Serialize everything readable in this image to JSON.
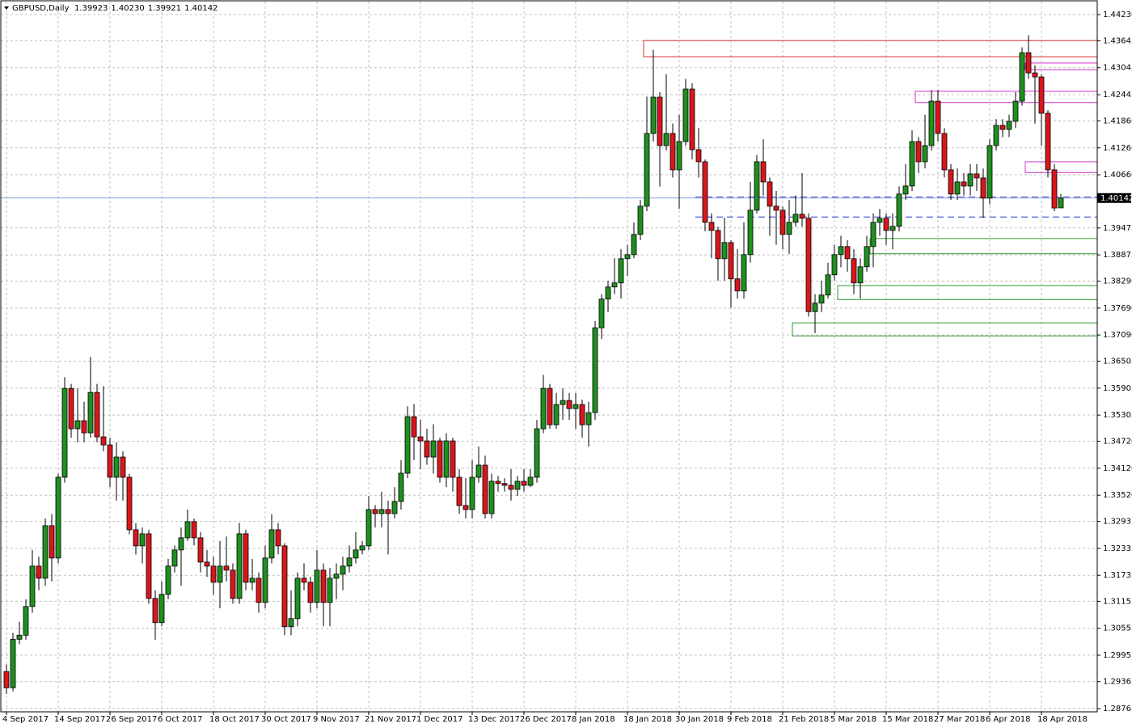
{
  "chart_data": {
    "type": "candlestick",
    "header": {
      "symbol": "GBPUSD,Daily",
      "ohlc": [
        "1.39923",
        "1.40230",
        "1.39921",
        "1.40142"
      ]
    },
    "categories": [
      "4 Sep 2017",
      null,
      null,
      null,
      null,
      null,
      null,
      null,
      "14 Sep 2017",
      null,
      null,
      null,
      null,
      null,
      null,
      null,
      "26 Sep 2017",
      null,
      null,
      null,
      null,
      null,
      null,
      null,
      "6 Oct 2017",
      null,
      null,
      null,
      null,
      null,
      null,
      null,
      "18 Oct 2017",
      null,
      null,
      null,
      null,
      null,
      null,
      null,
      "30 Oct 2017",
      null,
      null,
      null,
      null,
      null,
      null,
      null,
      "9 Nov 2017",
      null,
      null,
      null,
      null,
      null,
      null,
      null,
      "21 Nov 2017",
      null,
      null,
      null,
      null,
      null,
      null,
      null,
      "1 Dec 2017",
      null,
      null,
      null,
      null,
      null,
      null,
      null,
      "13 Dec 2017",
      null,
      null,
      null,
      null,
      null,
      null,
      null,
      "26 Dec 2017",
      null,
      null,
      null,
      null,
      null,
      null,
      null,
      "8 Jan 2018",
      null,
      null,
      null,
      null,
      null,
      null,
      null,
      "18 Jan 2018",
      null,
      null,
      null,
      null,
      null,
      null,
      null,
      "30 Jan 2018",
      null,
      null,
      null,
      null,
      null,
      null,
      null,
      "9 Feb 2018",
      null,
      null,
      null,
      null,
      null,
      null,
      null,
      "21 Feb 2018",
      null,
      null,
      null,
      null,
      null,
      null,
      null,
      "5 Mar 2018",
      null,
      null,
      null,
      null,
      null,
      null,
      null,
      "15 Mar 2018",
      null,
      null,
      null,
      null,
      null,
      null,
      null,
      "27 Mar 2018",
      null,
      null,
      null,
      null,
      null,
      null,
      null,
      "6 Apr 2018",
      null,
      null,
      null,
      null,
      null,
      null,
      null,
      "18 Apr 2018",
      null,
      null,
      null
    ],
    "open": [
      1.2959,
      1.2923,
      1.3031,
      1.304,
      1.3104,
      1.3194,
      1.3167,
      1.3284,
      1.3212,
      1.3392,
      1.359,
      1.35,
      1.3518,
      1.3491,
      1.3581,
      1.3482,
      1.3464,
      1.3392,
      1.3437,
      1.3392,
      1.3275,
      1.3239,
      1.3266,
      1.3122,
      1.3068,
      1.3131,
      1.3194,
      1.323,
      1.3257,
      1.3293,
      1.3257,
      1.3203,
      1.3194,
      1.3158,
      1.3194,
      1.3185,
      1.3122,
      1.3266,
      1.3158,
      1.3167,
      1.3113,
      1.3212,
      1.3275,
      1.3239,
      1.3059,
      1.3077,
      1.3167,
      1.3158,
      1.3113,
      1.3185,
      1.3113,
      1.3167,
      1.3176,
      1.3194,
      1.3212,
      1.323,
      1.3239,
      1.332,
      1.3311,
      1.332,
      1.3311,
      1.3338,
      1.3401,
      1.3527,
      1.3482,
      1.3473,
      1.3437,
      1.3473,
      1.3392,
      1.3473,
      1.3392,
      1.3329,
      1.332,
      1.3392,
      1.3419,
      1.3311,
      1.3383,
      1.3378,
      1.3374,
      1.3365,
      1.3383,
      1.3374,
      1.3392,
      1.35,
      1.359,
      1.3509,
      1.3554,
      1.3563,
      1.3545,
      1.3554,
      1.3509,
      1.3536,
      1.3725,
      1.3789,
      1.3816,
      1.3825,
      1.3879,
      1.3888,
      1.3933,
      1.3996,
      1.4158,
      1.4239,
      1.4131,
      1.4158,
      1.4077,
      1.414,
      1.4257,
      1.4122,
      1.4095,
      1.396,
      1.3942,
      1.3879,
      1.3915,
      1.3834,
      1.3807,
      1.3888,
      1.3987,
      1.4095,
      1.405,
      1.3996,
      1.3987,
      1.3933,
      1.396,
      1.3978,
      1.3969,
      1.3761,
      1.378,
      1.3798,
      1.3843,
      1.3888,
      1.3906,
      1.3879,
      1.3825,
      1.3861,
      1.3906,
      1.396,
      1.3969,
      1.3942,
      1.3951,
      1.4023,
      1.4041,
      1.414,
      1.4095,
      1.4131,
      1.423,
      1.4158,
      1.4077,
      1.4023,
      1.405,
      1.4041,
      1.4068,
      1.4059,
      1.4014,
      1.4131,
      1.4176,
      1.4167,
      1.4185,
      1.423,
      1.4338,
      1.4293,
      1.4284,
      1.4203,
      1.4077,
      1.39923
    ],
    "high": [
      1.2975,
      1.3045,
      1.307,
      1.312,
      1.323,
      1.3215,
      1.33,
      1.331,
      1.34,
      1.3615,
      1.36,
      1.359,
      1.356,
      1.366,
      1.36,
      1.3595,
      1.348,
      1.347,
      1.345,
      1.34,
      1.329,
      1.328,
      1.3275,
      1.314,
      1.316,
      1.321,
      1.324,
      1.328,
      1.332,
      1.33,
      1.327,
      1.323,
      1.3215,
      1.325,
      1.326,
      1.32,
      1.329,
      1.3275,
      1.321,
      1.318,
      1.324,
      1.331,
      1.329,
      1.3245,
      1.314,
      1.318,
      1.32,
      1.317,
      1.323,
      1.32,
      1.319,
      1.32,
      1.3215,
      1.324,
      1.327,
      1.325,
      1.335,
      1.333,
      1.336,
      1.334,
      1.337,
      1.343,
      1.355,
      1.3555,
      1.352,
      1.35,
      1.351,
      1.348,
      1.349,
      1.348,
      1.341,
      1.339,
      1.343,
      1.346,
      1.344,
      1.34,
      1.3395,
      1.339,
      1.341,
      1.3395,
      1.341,
      1.341,
      1.352,
      1.362,
      1.36,
      1.358,
      1.359,
      1.358,
      1.358,
      1.3565,
      1.356,
      1.374,
      1.38,
      1.383,
      1.388,
      1.39,
      1.391,
      1.396,
      1.401,
      1.424,
      1.4344,
      1.425,
      1.429,
      1.418,
      1.42,
      1.428,
      1.427,
      1.417,
      1.41,
      1.398,
      1.395,
      1.397,
      1.392,
      1.39,
      1.396,
      1.405,
      1.411,
      1.4145,
      1.406,
      1.403,
      1.3995,
      1.401,
      1.402,
      1.407,
      1.398,
      1.38,
      1.383,
      1.387,
      1.391,
      1.393,
      1.392,
      1.39,
      1.388,
      1.393,
      1.398,
      1.399,
      1.398,
      1.398,
      1.404,
      1.409,
      1.4165,
      1.415,
      1.42,
      1.4255,
      1.4255,
      1.417,
      1.409,
      1.408,
      1.407,
      1.409,
      1.409,
      1.408,
      1.4145,
      1.419,
      1.419,
      1.42,
      1.425,
      1.435,
      1.4377,
      1.431,
      1.429,
      1.421,
      1.409,
      1.4023
    ],
    "low": [
      1.2909,
      1.2915,
      1.302,
      1.303,
      1.309,
      1.314,
      1.315,
      1.316,
      1.32,
      1.338,
      1.348,
      1.347,
      1.347,
      1.348,
      1.347,
      1.345,
      1.337,
      1.334,
      1.334,
      1.3265,
      1.322,
      1.32,
      1.311,
      1.303,
      1.306,
      1.312,
      1.318,
      1.315,
      1.325,
      1.324,
      1.318,
      1.317,
      1.313,
      1.31,
      1.316,
      1.311,
      1.311,
      1.314,
      1.314,
      1.309,
      1.31,
      1.32,
      1.322,
      1.304,
      1.304,
      1.306,
      1.314,
      1.309,
      1.31,
      1.306,
      1.306,
      1.312,
      1.314,
      1.318,
      1.32,
      1.322,
      1.323,
      1.328,
      1.328,
      1.322,
      1.33,
      1.332,
      1.339,
      1.343,
      1.341,
      1.342,
      1.34,
      1.338,
      1.337,
      1.336,
      1.331,
      1.33,
      1.33,
      1.338,
      1.33,
      1.33,
      1.336,
      1.336,
      1.334,
      1.335,
      1.336,
      1.337,
      1.338,
      1.349,
      1.35,
      1.35,
      1.352,
      1.352,
      1.35,
      1.348,
      1.346,
      1.352,
      1.37,
      1.376,
      1.38,
      1.379,
      1.384,
      1.388,
      1.392,
      1.3985,
      1.414,
      1.404,
      1.412,
      1.406,
      1.399,
      1.413,
      1.41,
      1.406,
      1.394,
      1.388,
      1.383,
      1.383,
      1.377,
      1.379,
      1.379,
      1.387,
      1.398,
      1.402,
      1.393,
      1.391,
      1.39,
      1.389,
      1.395,
      1.395,
      1.375,
      1.3713,
      1.376,
      1.379,
      1.383,
      1.386,
      1.385,
      1.38,
      1.379,
      1.385,
      1.386,
      1.393,
      1.391,
      1.39,
      1.394,
      1.401,
      1.403,
      1.407,
      1.408,
      1.412,
      1.414,
      1.406,
      1.401,
      1.401,
      1.402,
      1.402,
      1.403,
      1.397,
      1.4,
      1.412,
      1.415,
      1.415,
      1.417,
      1.422,
      1.428,
      1.418,
      1.413,
      1.406,
      1.3985,
      1.39921
    ],
    "close": [
      1.2923,
      1.3031,
      1.304,
      1.3104,
      1.3194,
      1.3167,
      1.3284,
      1.3212,
      1.3392,
      1.359,
      1.35,
      1.3518,
      1.3491,
      1.3581,
      1.3482,
      1.3464,
      1.3392,
      1.3437,
      1.3392,
      1.3275,
      1.3239,
      1.3266,
      1.3122,
      1.3068,
      1.3131,
      1.3194,
      1.323,
      1.3257,
      1.3293,
      1.3257,
      1.3203,
      1.3194,
      1.3158,
      1.3194,
      1.3185,
      1.3122,
      1.3266,
      1.3158,
      1.3167,
      1.3113,
      1.3212,
      1.3275,
      1.3239,
      1.3059,
      1.3077,
      1.3167,
      1.3158,
      1.3113,
      1.3185,
      1.3113,
      1.3167,
      1.3176,
      1.3194,
      1.3212,
      1.323,
      1.3239,
      1.332,
      1.3311,
      1.332,
      1.3311,
      1.3338,
      1.3401,
      1.3527,
      1.3482,
      1.3473,
      1.3437,
      1.3473,
      1.3392,
      1.3473,
      1.3392,
      1.3329,
      1.332,
      1.3392,
      1.3419,
      1.3311,
      1.3383,
      1.3378,
      1.3374,
      1.3365,
      1.3383,
      1.3374,
      1.3392,
      1.35,
      1.359,
      1.3509,
      1.3554,
      1.3563,
      1.3545,
      1.3554,
      1.3509,
      1.3536,
      1.3725,
      1.3789,
      1.3816,
      1.3825,
      1.3879,
      1.3888,
      1.3933,
      1.3996,
      1.4158,
      1.4239,
      1.4131,
      1.4158,
      1.4077,
      1.414,
      1.4257,
      1.4122,
      1.4095,
      1.396,
      1.3942,
      1.3879,
      1.3915,
      1.3834,
      1.3807,
      1.3888,
      1.3987,
      1.4095,
      1.405,
      1.3996,
      1.3987,
      1.3933,
      1.396,
      1.3978,
      1.3969,
      1.3761,
      1.378,
      1.3798,
      1.3843,
      1.3888,
      1.3906,
      1.3879,
      1.3825,
      1.3861,
      1.3906,
      1.396,
      1.3969,
      1.3942,
      1.3951,
      1.4023,
      1.4041,
      1.414,
      1.4095,
      1.4131,
      1.423,
      1.4158,
      1.4077,
      1.4023,
      1.405,
      1.4041,
      1.4068,
      1.4059,
      1.4014,
      1.4131,
      1.4176,
      1.4167,
      1.4185,
      1.423,
      1.4338,
      1.4293,
      1.4284,
      1.4203,
      1.4077,
      1.3992,
      1.40142
    ],
    "up_color": "#1f8f1f",
    "down_color": "#d8161c",
    "ylim": [
      1.28693,
      1.44518
    ],
    "yticks": [
      {
        "value": 1.4423,
        "label": "1.44230"
      },
      1.43645,
      1.43045,
      1.42445,
      {
        "value": 1.4186,
        "label": "1.41860"
      },
      {
        "value": 1.4126,
        "label": "1.41260"
      },
      {
        "value": 1.4066,
        "label": "1.40660"
      },
      1.39475,
      1.38875,
      {
        "value": 1.3829,
        "label": "1.38290"
      },
      {
        "value": 1.3769,
        "label": "1.37690"
      },
      {
        "value": 1.3709,
        "label": "1.37090"
      },
      1.36505,
      1.35905,
      1.35305,
      {
        "value": 1.3472,
        "label": "1.34720"
      },
      {
        "value": 1.3412,
        "label": "1.34120"
      },
      {
        "value": 1.3352,
        "label": "1.33520"
      },
      1.32935,
      1.32335,
      1.31735,
      1.31155,
      1.30555,
      1.29955,
      1.29365,
      1.28765
    ],
    "grid": true,
    "zones": [
      {
        "x0": 99,
        "prices": [
          1.4365,
          1.4329
        ],
        "color": "#d83030"
      },
      {
        "x0": 158,
        "prices": [
          1.4315,
          1.43
        ],
        "color": "#cc33cc"
      },
      {
        "x0": 141,
        "prices": [
          1.4252,
          1.4227
        ],
        "color": "#cc33cc"
      },
      {
        "x0": 158,
        "prices": [
          1.4095,
          1.4071
        ],
        "color": "#cc33cc"
      },
      {
        "x0": 134,
        "prices": [
          1.3924,
          1.389
        ],
        "color": "#2e9a2e"
      },
      {
        "x0": 129,
        "prices": [
          1.3819,
          1.3788
        ],
        "color": "#2e9a2e"
      },
      {
        "x0": 122,
        "prices": [
          1.3736,
          1.3707
        ],
        "color": "#2e9a2e"
      }
    ],
    "levels": [
      {
        "x0": 107,
        "price": 1.4016,
        "color": "#2233cc"
      },
      {
        "x0": 107,
        "price": 1.3972,
        "color": "#2233cc"
      }
    ]
  }
}
